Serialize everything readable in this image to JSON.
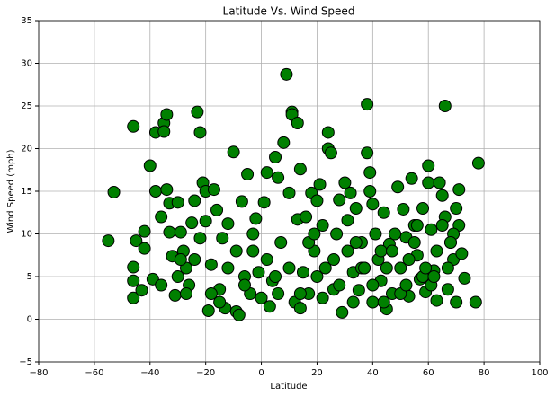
{
  "chart_data": {
    "type": "scatter",
    "title": "Latitude Vs. Wind Speed",
    "x_label": "Latitude",
    "y_label": "Wind Speed (mph)",
    "color": "#008000",
    "edge_color": "#000000",
    "grid": true,
    "xlim": [
      -80,
      100
    ],
    "ylim": [
      -5,
      35
    ],
    "xticks": [
      {
        "value": -80,
        "label": "−80"
      },
      {
        "value": -60,
        "label": "−60"
      },
      {
        "value": -40,
        "label": "−40"
      },
      {
        "value": -20,
        "label": "−20"
      },
      0,
      20,
      40,
      60,
      80,
      100
    ],
    "yticks": [
      {
        "value": -5,
        "label": "−5"
      },
      0,
      5,
      10,
      15,
      20,
      25,
      30,
      35
    ],
    "x": [
      -55,
      -53,
      -46,
      -46,
      -46,
      -46,
      -45,
      -43,
      -42,
      -42,
      -40,
      -39,
      -38,
      -38,
      -36,
      -35,
      -35,
      -34,
      -34,
      -33,
      -33,
      -32,
      -31,
      -30,
      -29,
      -28,
      -27,
      -26,
      -25,
      -24,
      -23,
      -22,
      -22,
      -21,
      -20,
      -20,
      -19,
      -18,
      -17,
      -16,
      -15,
      -14,
      -13,
      -12,
      -10,
      -9,
      -8,
      -7,
      -6,
      -5,
      -4,
      -3,
      -2,
      -1,
      0,
      1,
      2,
      3,
      4,
      5,
      6,
      7,
      8,
      9,
      10,
      11,
      11,
      12,
      13,
      13,
      14,
      14,
      15,
      16,
      17,
      18,
      19,
      20,
      21,
      22,
      23,
      24,
      24,
      25,
      26,
      27,
      28,
      29,
      30,
      31,
      32,
      33,
      34,
      35,
      36,
      37,
      38,
      38,
      39,
      39,
      40,
      40,
      41,
      42,
      43,
      44,
      45,
      46,
      47,
      49,
      50,
      51,
      52,
      53,
      54,
      55,
      56,
      57,
      58,
      59,
      60,
      60,
      61,
      62,
      63,
      64,
      65,
      66,
      66,
      67,
      68,
      69,
      70,
      71,
      71,
      72,
      73,
      77,
      78,
      -30,
      -27,
      -24,
      -18,
      -12,
      -6,
      -3,
      2,
      6,
      10,
      17,
      20,
      22,
      26,
      28,
      31,
      33,
      36,
      40,
      43,
      45,
      48,
      50,
      53,
      55,
      58,
      61,
      63,
      65,
      67,
      69,
      70,
      -36,
      -29,
      -15,
      -9,
      5,
      14,
      19,
      34,
      37,
      44,
      47,
      52,
      56,
      59,
      62,
      68
    ],
    "values": [
      9.2,
      14.9,
      22.6,
      6.1,
      4.5,
      2.5,
      9.2,
      3.4,
      10.3,
      8.3,
      18,
      4.7,
      21.9,
      15,
      12,
      23,
      22,
      24,
      15.2,
      13.6,
      10.2,
      7.4,
      2.8,
      13.7,
      10.2,
      8,
      6,
      4,
      11.3,
      13.9,
      24.3,
      21.9,
      9.5,
      16,
      15,
      11.5,
      1,
      6.4,
      15.2,
      12.8,
      3.5,
      9.5,
      1.3,
      11.2,
      19.6,
      0.9,
      0.5,
      13.8,
      5,
      17,
      3,
      8,
      11.8,
      5.5,
      2.5,
      13.7,
      17.2,
      1.5,
      4.5,
      19,
      16.6,
      9,
      20.7,
      28.7,
      14.8,
      24.3,
      24,
      2,
      23,
      11.7,
      17.6,
      1.3,
      5.5,
      12,
      3,
      14.8,
      8,
      13.9,
      15.8,
      2.5,
      6,
      21.9,
      20,
      19.5,
      3.5,
      10,
      14,
      0.8,
      16,
      11.6,
      14.8,
      5.5,
      13,
      3.4,
      9,
      6,
      25.2,
      19.5,
      17.2,
      15,
      13.5,
      2,
      10,
      7,
      4.5,
      12.5,
      1.2,
      8.8,
      3,
      15.5,
      6,
      12.9,
      9.6,
      2.7,
      16.5,
      11,
      7.5,
      4.7,
      13,
      3.2,
      18,
      16,
      10.5,
      5.7,
      2.2,
      16,
      14.5,
      25,
      12,
      3.5,
      9,
      7,
      13,
      15.2,
      11,
      7.7,
      4.8,
      2,
      18.3,
      5,
      3,
      7,
      3,
      6,
      4,
      10,
      7,
      3,
      6,
      9,
      5,
      11,
      7,
      4,
      8,
      2,
      6,
      4,
      8,
      6,
      10,
      3,
      7,
      9,
      5,
      4,
      8,
      11,
      6,
      10,
      2,
      4,
      7,
      2,
      8,
      5,
      3,
      10,
      9,
      6,
      2,
      8,
      4,
      11,
      6,
      5,
      9
    ]
  }
}
